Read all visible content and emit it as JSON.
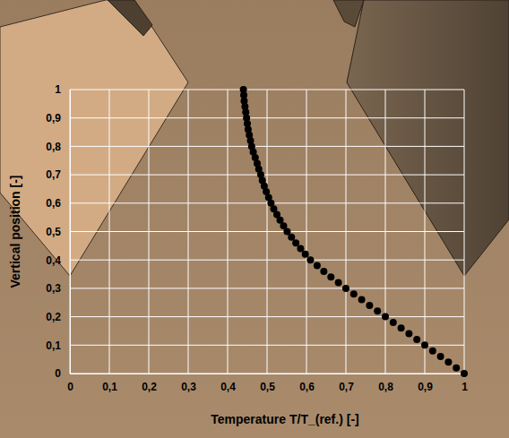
{
  "chart_data": {
    "type": "scatter",
    "x_label": "Temperature T/T_(ref.) [-]",
    "y_label": "Vertical position [-]",
    "xlim": [
      0,
      1
    ],
    "ylim": [
      0,
      1
    ],
    "xticks": [
      0,
      {
        "value": 0.1,
        "label": "0,1"
      },
      {
        "value": 0.2,
        "label": "0,2"
      },
      {
        "value": 0.3,
        "label": "0,3"
      },
      {
        "value": 0.4,
        "label": "0,4"
      },
      {
        "value": 0.5,
        "label": "0,5"
      },
      {
        "value": 0.6,
        "label": "0,6"
      },
      {
        "value": 0.7,
        "label": "0,7"
      },
      {
        "value": 0.8,
        "label": "0,8"
      },
      {
        "value": 0.9,
        "label": "0,9"
      },
      1
    ],
    "yticks": [
      0,
      {
        "value": 0.1,
        "label": "0,1"
      },
      {
        "value": 0.2,
        "label": "0,2"
      },
      {
        "value": 0.3,
        "label": "0,3"
      },
      {
        "value": 0.4,
        "label": "0,4"
      },
      {
        "value": 0.5,
        "label": "0,5"
      },
      {
        "value": 0.6,
        "label": "0,6"
      },
      {
        "value": 0.7,
        "label": "0,7"
      },
      {
        "value": 0.8,
        "label": "0,8"
      },
      {
        "value": 0.9,
        "label": "0,9"
      },
      1
    ],
    "grid": true,
    "color": "#000000",
    "marker": "circle",
    "x": [
      1.0,
      0.98,
      0.96,
      0.94,
      0.92,
      0.9,
      0.88,
      0.86,
      0.84,
      0.82,
      0.8,
      0.78,
      0.76,
      0.74,
      0.72,
      0.7,
      0.681,
      0.662,
      0.644,
      0.627,
      0.61,
      0.597,
      0.585,
      0.573,
      0.562,
      0.551,
      0.542,
      0.533,
      0.525,
      0.517,
      0.51,
      0.504,
      0.498,
      0.493,
      0.488,
      0.484,
      0.479,
      0.475,
      0.47,
      0.465,
      0.461,
      0.458,
      0.455,
      0.452,
      0.45,
      0.448,
      0.446,
      0.444,
      0.442,
      0.441,
      0.44
    ],
    "values": [
      0.0,
      0.02,
      0.04,
      0.06,
      0.08,
      0.1,
      0.12,
      0.14,
      0.16,
      0.18,
      0.2,
      0.22,
      0.24,
      0.26,
      0.28,
      0.3,
      0.32,
      0.34,
      0.36,
      0.38,
      0.4,
      0.42,
      0.44,
      0.46,
      0.48,
      0.5,
      0.52,
      0.54,
      0.56,
      0.58,
      0.6,
      0.62,
      0.64,
      0.66,
      0.68,
      0.7,
      0.72,
      0.74,
      0.76,
      0.78,
      0.8,
      0.82,
      0.84,
      0.86,
      0.88,
      0.9,
      0.92,
      0.94,
      0.96,
      0.98,
      1.0
    ]
  }
}
